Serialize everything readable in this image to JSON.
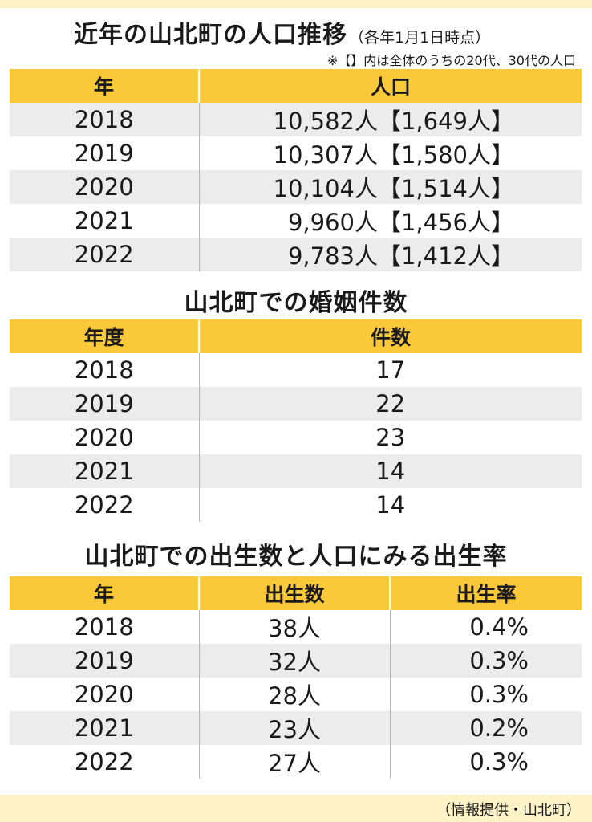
{
  "title": {
    "main": "近年の山北町の人口推移",
    "sub": "（各年1月1日時点）",
    "note": "※【】内は全体のうちの20代、30代の人口"
  },
  "population_table": {
    "headers": [
      "年",
      "人口"
    ],
    "rows": [
      {
        "year": "2018",
        "population": "10,582人【1,649人】"
      },
      {
        "year": "2019",
        "population": "10,307人【1,580人】"
      },
      {
        "year": "2020",
        "population": "10,104人【1,514人】"
      },
      {
        "year": "2021",
        "population": "9,960人【1,456人】"
      },
      {
        "year": "2022",
        "population": "9,783人【1,412人】"
      }
    ]
  },
  "marriage": {
    "title": "山北町での婚姻件数",
    "headers": [
      "年度",
      "件数"
    ],
    "rows": [
      {
        "year": "2018",
        "count": "17"
      },
      {
        "year": "2019",
        "count": "22"
      },
      {
        "year": "2020",
        "count": "23"
      },
      {
        "year": "2021",
        "count": "14"
      },
      {
        "year": "2022",
        "count": "14"
      }
    ]
  },
  "births": {
    "title": "山北町での出生数と人口にみる出生率",
    "headers": [
      "年",
      "出生数",
      "出生率"
    ],
    "rows": [
      {
        "year": "2018",
        "births": "38人",
        "rate": "0.4%"
      },
      {
        "year": "2019",
        "births": "32人",
        "rate": "0.3%"
      },
      {
        "year": "2020",
        "births": "28人",
        "rate": "0.3%"
      },
      {
        "year": "2021",
        "births": "23人",
        "rate": "0.2%"
      },
      {
        "year": "2022",
        "births": "27人",
        "rate": "0.3%"
      }
    ]
  },
  "credit": "（情報提供・山北町）",
  "colors": {
    "header": "#f9c93a",
    "stripe": "#ececec",
    "band": "#fdf3c6"
  }
}
